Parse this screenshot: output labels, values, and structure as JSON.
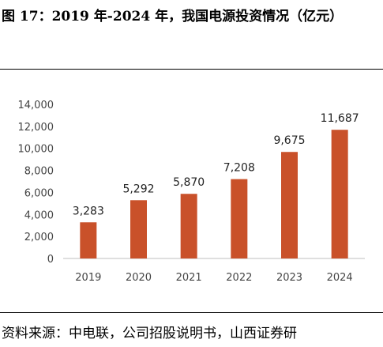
{
  "figure_title": "图 17：2019 年-2024 年，我国电源投资情况（亿元）",
  "source": "资料来源：中电联，公司招股说明书，山西证券研",
  "colors": {
    "bar": "#c9512a",
    "axis": "#bfbfbf"
  },
  "chart_data": {
    "type": "bar",
    "title": "",
    "xlabel": "",
    "ylabel": "",
    "categories": [
      "2019",
      "2020",
      "2021",
      "2022",
      "2023",
      "2024"
    ],
    "values": [
      3283,
      5292,
      5870,
      7208,
      9675,
      11687
    ],
    "value_labels": [
      "3,283",
      "5,292",
      "5,870",
      "7,208",
      "9,675",
      "11,687"
    ],
    "ylim": [
      0,
      14000
    ],
    "yticks": [
      0,
      2000,
      4000,
      6000,
      8000,
      10000,
      12000,
      14000
    ],
    "ytick_labels": [
      "0",
      "2,000",
      "4,000",
      "6,000",
      "8,000",
      "10,000",
      "12,000",
      "14,000"
    ],
    "grid": false,
    "legend": "none"
  }
}
